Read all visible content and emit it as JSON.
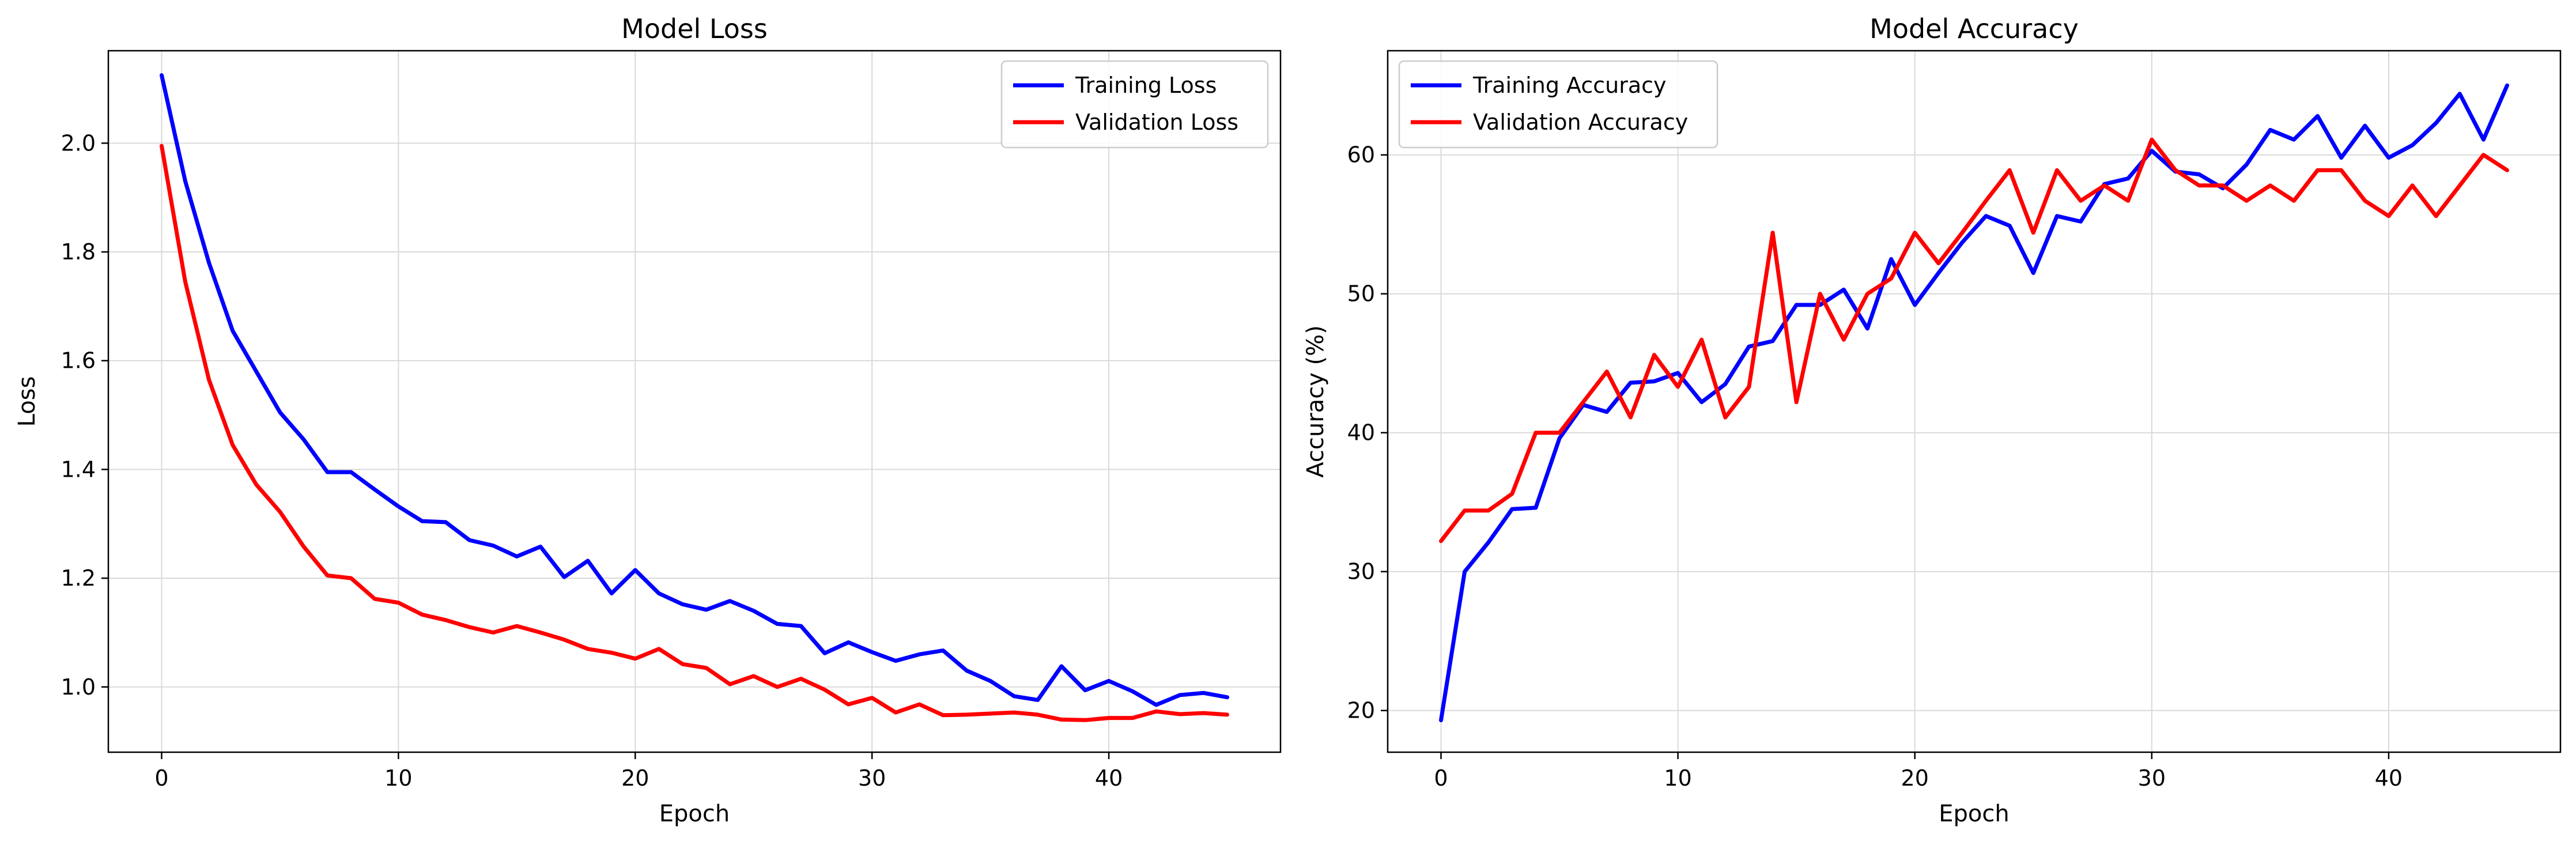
{
  "chart_data": [
    {
      "type": "line",
      "title": "Model Loss",
      "xlabel": "Epoch",
      "ylabel": "Loss",
      "xlim": [
        -2.25,
        47.25
      ],
      "ylim": [
        0.88,
        2.17
      ],
      "xticks": [
        0,
        10,
        20,
        30,
        40
      ],
      "yticks": [
        1.0,
        1.2,
        1.4,
        1.6,
        1.8,
        2.0
      ],
      "tick_decimals": 1,
      "grid": true,
      "legend_position": "top-right",
      "x": [
        0,
        1,
        2,
        3,
        4,
        5,
        6,
        7,
        8,
        9,
        10,
        11,
        12,
        13,
        14,
        15,
        16,
        17,
        18,
        19,
        20,
        21,
        22,
        23,
        24,
        25,
        26,
        27,
        28,
        29,
        30,
        31,
        32,
        33,
        34,
        35,
        36,
        37,
        38,
        39,
        40,
        41,
        42,
        43,
        44,
        45
      ],
      "series": [
        {
          "name": "Training Loss",
          "color": "#0000ff",
          "values": [
            2.125,
            1.93,
            1.78,
            1.655,
            1.58,
            1.505,
            1.455,
            1.395,
            1.395,
            1.363,
            1.332,
            1.305,
            1.303,
            1.27,
            1.26,
            1.24,
            1.258,
            1.202,
            1.232,
            1.172,
            1.215,
            1.172,
            1.152,
            1.142,
            1.158,
            1.14,
            1.116,
            1.112,
            1.062,
            1.082,
            1.064,
            1.048,
            1.06,
            1.067,
            1.03,
            1.011,
            0.983,
            0.976,
            1.038,
            0.994,
            1.011,
            0.992,
            0.967,
            0.985,
            0.989,
            0.981
          ]
        },
        {
          "name": "Validation Loss",
          "color": "#ff0000",
          "values": [
            1.995,
            1.745,
            1.565,
            1.445,
            1.372,
            1.322,
            1.258,
            1.205,
            1.2,
            1.162,
            1.155,
            1.133,
            1.123,
            1.11,
            1.1,
            1.112,
            1.1,
            1.087,
            1.07,
            1.063,
            1.052,
            1.07,
            1.042,
            1.035,
            1.005,
            1.02,
            1.0,
            1.015,
            0.995,
            0.968,
            0.98,
            0.953,
            0.968,
            0.948,
            0.949,
            0.951,
            0.953,
            0.949,
            0.94,
            0.939,
            0.943,
            0.943,
            0.955,
            0.95,
            0.952,
            0.949
          ]
        }
      ]
    },
    {
      "type": "line",
      "title": "Model Accuracy",
      "xlabel": "Epoch",
      "ylabel": "Accuracy (%)",
      "xlim": [
        -2.25,
        47.25
      ],
      "ylim": [
        17.0,
        67.5
      ],
      "xticks": [
        0,
        10,
        20,
        30,
        40
      ],
      "yticks": [
        20,
        30,
        40,
        50,
        60
      ],
      "tick_decimals": 0,
      "grid": true,
      "legend_position": "top-left",
      "x": [
        0,
        1,
        2,
        3,
        4,
        5,
        6,
        7,
        8,
        9,
        10,
        11,
        12,
        13,
        14,
        15,
        16,
        17,
        18,
        19,
        20,
        21,
        22,
        23,
        24,
        25,
        26,
        27,
        28,
        29,
        30,
        31,
        32,
        33,
        34,
        35,
        36,
        37,
        38,
        39,
        40,
        41,
        42,
        43,
        44,
        45
      ],
      "series": [
        {
          "name": "Training Accuracy",
          "color": "#0000ff",
          "values": [
            19.3,
            30.0,
            32.1,
            34.5,
            34.6,
            39.6,
            42.0,
            41.5,
            43.6,
            43.7,
            44.3,
            42.2,
            43.5,
            46.2,
            46.6,
            49.2,
            49.2,
            50.3,
            47.5,
            52.5,
            49.2,
            51.5,
            53.7,
            55.6,
            54.9,
            51.5,
            55.6,
            55.2,
            57.9,
            58.3,
            60.3,
            58.8,
            58.6,
            57.6,
            59.3,
            61.8,
            61.1,
            62.8,
            59.8,
            62.1,
            59.8,
            60.7,
            62.3,
            64.4,
            61.1,
            65.0
          ]
        },
        {
          "name": "Validation Accuracy",
          "color": "#ff0000",
          "values": [
            32.2,
            34.4,
            34.4,
            35.6,
            40.0,
            40.0,
            42.2,
            44.4,
            41.1,
            45.6,
            43.3,
            46.7,
            41.1,
            43.3,
            54.4,
            42.2,
            50.0,
            46.7,
            50.0,
            51.1,
            54.4,
            52.2,
            54.4,
            56.7,
            58.9,
            54.4,
            58.9,
            56.7,
            57.8,
            56.7,
            61.1,
            58.9,
            57.8,
            57.8,
            56.7,
            57.8,
            56.7,
            58.9,
            58.9,
            56.7,
            55.6,
            57.8,
            55.6,
            57.8,
            60.0,
            58.9
          ]
        }
      ]
    }
  ]
}
